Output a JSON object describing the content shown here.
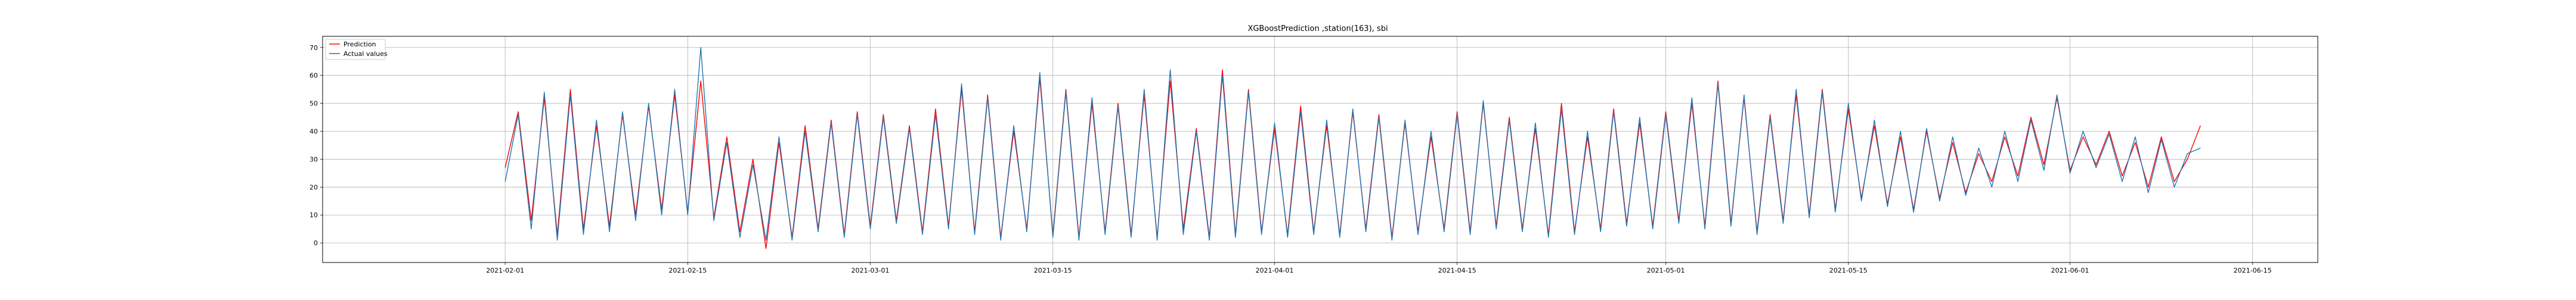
{
  "chart_data": {
    "type": "line",
    "title": "XGBoostPrediction ,station(163), sbi",
    "xlabel": "",
    "ylabel": "",
    "x_range": [
      "2021-01-18",
      "2021-06-20"
    ],
    "ylim": [
      -7,
      74
    ],
    "y_ticks": [
      0,
      10,
      20,
      30,
      40,
      50,
      60,
      70
    ],
    "x_ticks": [
      "2021-02-01",
      "2021-02-15",
      "2021-03-01",
      "2021-03-15",
      "2021-04-01",
      "2021-04-15",
      "2021-05-01",
      "2021-05-15",
      "2021-06-01",
      "2021-06-15"
    ],
    "grid": true,
    "legend_position": "top-left",
    "series": [
      {
        "name": "Prediction",
        "color": "#ff0000",
        "x": [
          "2021-02-01",
          "2021-02-02",
          "2021-02-03",
          "2021-02-04",
          "2021-02-05",
          "2021-02-06",
          "2021-02-07",
          "2021-02-08",
          "2021-02-09",
          "2021-02-10",
          "2021-02-11",
          "2021-02-12",
          "2021-02-13",
          "2021-02-14",
          "2021-02-15",
          "2021-02-16",
          "2021-02-17",
          "2021-02-18",
          "2021-02-19",
          "2021-02-20",
          "2021-02-21",
          "2021-02-22",
          "2021-02-23",
          "2021-02-24",
          "2021-02-25",
          "2021-02-26",
          "2021-02-27",
          "2021-02-28",
          "2021-03-01",
          "2021-03-02",
          "2021-03-03",
          "2021-03-04",
          "2021-03-05",
          "2021-03-06",
          "2021-03-07",
          "2021-03-08",
          "2021-03-09",
          "2021-03-10",
          "2021-03-11",
          "2021-03-12",
          "2021-03-13",
          "2021-03-14",
          "2021-03-15",
          "2021-03-16",
          "2021-03-17",
          "2021-03-18",
          "2021-03-19",
          "2021-03-20",
          "2021-03-21",
          "2021-03-22",
          "2021-03-23",
          "2021-03-24",
          "2021-03-25",
          "2021-03-26",
          "2021-03-27",
          "2021-03-28",
          "2021-03-29",
          "2021-03-30",
          "2021-03-31",
          "2021-04-01",
          "2021-04-02",
          "2021-04-03",
          "2021-04-04",
          "2021-04-05",
          "2021-04-06",
          "2021-04-07",
          "2021-04-08",
          "2021-04-09",
          "2021-04-10",
          "2021-04-11",
          "2021-04-12",
          "2021-04-13",
          "2021-04-14",
          "2021-04-15",
          "2021-04-16",
          "2021-04-17",
          "2021-04-18",
          "2021-04-19",
          "2021-04-20",
          "2021-04-21",
          "2021-04-22",
          "2021-04-23",
          "2021-04-24",
          "2021-04-25",
          "2021-04-26",
          "2021-04-27",
          "2021-04-28",
          "2021-04-29",
          "2021-04-30",
          "2021-05-01",
          "2021-05-02",
          "2021-05-03",
          "2021-05-04",
          "2021-05-05",
          "2021-05-06",
          "2021-05-07",
          "2021-05-08",
          "2021-05-09",
          "2021-05-10",
          "2021-05-11",
          "2021-05-12",
          "2021-05-13",
          "2021-05-14",
          "2021-05-15",
          "2021-05-16",
          "2021-05-17",
          "2021-05-18",
          "2021-05-19",
          "2021-05-20",
          "2021-05-21",
          "2021-05-22",
          "2021-05-23",
          "2021-05-24",
          "2021-05-25",
          "2021-05-26",
          "2021-05-27",
          "2021-05-28",
          "2021-05-29",
          "2021-05-30",
          "2021-05-31",
          "2021-06-01",
          "2021-06-02",
          "2021-06-03",
          "2021-06-04",
          "2021-06-05",
          "2021-06-06",
          "2021-06-07",
          "2021-06-08",
          "2021-06-09",
          "2021-06-10",
          "2021-06-11"
        ],
        "values": [
          27,
          47,
          8,
          52,
          3,
          55,
          5,
          42,
          6,
          46,
          10,
          49,
          12,
          53,
          11,
          58,
          9,
          38,
          4,
          30,
          -2,
          36,
          2,
          42,
          5,
          44,
          3,
          47,
          6,
          46,
          8,
          42,
          4,
          48,
          6,
          55,
          4,
          53,
          2,
          40,
          5,
          59,
          3,
          55,
          2,
          50,
          4,
          50,
          3,
          53,
          2,
          58,
          5,
          41,
          2,
          62,
          3,
          55,
          4,
          41,
          3,
          49,
          4,
          42,
          3,
          47,
          5,
          46,
          2,
          43,
          4,
          38,
          5,
          47,
          4,
          50,
          6,
          45,
          5,
          41,
          3,
          50,
          4,
          38,
          5,
          48,
          7,
          43,
          6,
          47,
          8,
          50,
          6,
          58,
          7,
          52,
          4,
          46,
          8,
          53,
          10,
          55,
          12,
          48,
          16,
          42,
          14,
          38,
          12,
          40,
          16,
          36,
          18,
          32,
          22,
          38,
          24,
          45,
          28,
          52,
          26,
          38,
          28,
          40,
          24,
          36,
          20,
          38,
          22,
          30,
          42
        ]
      },
      {
        "name": "Actual values",
        "color": "#1f77b4",
        "x": [
          "2021-02-01",
          "2021-02-02",
          "2021-02-03",
          "2021-02-04",
          "2021-02-05",
          "2021-02-06",
          "2021-02-07",
          "2021-02-08",
          "2021-02-09",
          "2021-02-10",
          "2021-02-11",
          "2021-02-12",
          "2021-02-13",
          "2021-02-14",
          "2021-02-15",
          "2021-02-16",
          "2021-02-17",
          "2021-02-18",
          "2021-02-19",
          "2021-02-20",
          "2021-02-21",
          "2021-02-22",
          "2021-02-23",
          "2021-02-24",
          "2021-02-25",
          "2021-02-26",
          "2021-02-27",
          "2021-02-28",
          "2021-03-01",
          "2021-03-02",
          "2021-03-03",
          "2021-03-04",
          "2021-03-05",
          "2021-03-06",
          "2021-03-07",
          "2021-03-08",
          "2021-03-09",
          "2021-03-10",
          "2021-03-11",
          "2021-03-12",
          "2021-03-13",
          "2021-03-14",
          "2021-03-15",
          "2021-03-16",
          "2021-03-17",
          "2021-03-18",
          "2021-03-19",
          "2021-03-20",
          "2021-03-21",
          "2021-03-22",
          "2021-03-23",
          "2021-03-24",
          "2021-03-25",
          "2021-03-26",
          "2021-03-27",
          "2021-03-28",
          "2021-03-29",
          "2021-03-30",
          "2021-03-31",
          "2021-04-01",
          "2021-04-02",
          "2021-04-03",
          "2021-04-04",
          "2021-04-05",
          "2021-04-06",
          "2021-04-07",
          "2021-04-08",
          "2021-04-09",
          "2021-04-10",
          "2021-04-11",
          "2021-04-12",
          "2021-04-13",
          "2021-04-14",
          "2021-04-15",
          "2021-04-16",
          "2021-04-17",
          "2021-04-18",
          "2021-04-19",
          "2021-04-20",
          "2021-04-21",
          "2021-04-22",
          "2021-04-23",
          "2021-04-24",
          "2021-04-25",
          "2021-04-26",
          "2021-04-27",
          "2021-04-28",
          "2021-04-29",
          "2021-04-30",
          "2021-05-01",
          "2021-05-02",
          "2021-05-03",
          "2021-05-04",
          "2021-05-05",
          "2021-05-06",
          "2021-05-07",
          "2021-05-08",
          "2021-05-09",
          "2021-05-10",
          "2021-05-11",
          "2021-05-12",
          "2021-05-13",
          "2021-05-14",
          "2021-05-15",
          "2021-05-16",
          "2021-05-17",
          "2021-05-18",
          "2021-05-19",
          "2021-05-20",
          "2021-05-21",
          "2021-05-22",
          "2021-05-23",
          "2021-05-24",
          "2021-05-25",
          "2021-05-26",
          "2021-05-27",
          "2021-05-28",
          "2021-05-29",
          "2021-05-30",
          "2021-05-31",
          "2021-06-01",
          "2021-06-02",
          "2021-06-03",
          "2021-06-04",
          "2021-06-05",
          "2021-06-06",
          "2021-06-07",
          "2021-06-08",
          "2021-06-09",
          "2021-06-10",
          "2021-06-11"
        ],
        "values": [
          22,
          46,
          5,
          54,
          1,
          53,
          3,
          44,
          4,
          47,
          8,
          50,
          10,
          55,
          10,
          70,
          8,
          36,
          2,
          28,
          1,
          38,
          1,
          40,
          4,
          43,
          2,
          46,
          5,
          45,
          7,
          41,
          3,
          46,
          5,
          57,
          3,
          52,
          1,
          42,
          4,
          61,
          2,
          54,
          1,
          52,
          3,
          49,
          2,
          55,
          1,
          62,
          3,
          40,
          1,
          60,
          2,
          54,
          3,
          43,
          2,
          47,
          3,
          44,
          2,
          48,
          4,
          45,
          1,
          44,
          3,
          40,
          4,
          46,
          3,
          51,
          5,
          44,
          4,
          43,
          2,
          48,
          3,
          40,
          4,
          47,
          6,
          45,
          5,
          46,
          7,
          52,
          5,
          57,
          6,
          53,
          3,
          45,
          7,
          55,
          9,
          54,
          11,
          50,
          15,
          44,
          13,
          40,
          11,
          41,
          15,
          38,
          17,
          34,
          20,
          40,
          22,
          44,
          26,
          53,
          25,
          40,
          27,
          39,
          22,
          38,
          18,
          37,
          20,
          32,
          34
        ]
      }
    ]
  }
}
